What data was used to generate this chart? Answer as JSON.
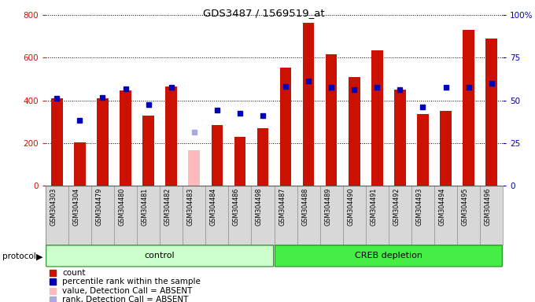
{
  "title": "GDS3487 / 1569519_at",
  "samples": [
    "GSM304303",
    "GSM304304",
    "GSM304479",
    "GSM304480",
    "GSM304481",
    "GSM304482",
    "GSM304483",
    "GSM304484",
    "GSM304486",
    "GSM304498",
    "GSM304487",
    "GSM304488",
    "GSM304489",
    "GSM304490",
    "GSM304491",
    "GSM304492",
    "GSM304493",
    "GSM304494",
    "GSM304495",
    "GSM304496"
  ],
  "count_values": [
    410,
    205,
    410,
    445,
    330,
    465,
    165,
    285,
    230,
    270,
    555,
    765,
    615,
    510,
    635,
    450,
    335,
    350,
    730,
    690
  ],
  "rank_values": [
    410,
    305,
    415,
    455,
    380,
    460,
    250,
    355,
    340,
    330,
    465,
    490,
    460,
    450,
    460,
    450,
    370,
    460,
    460,
    480
  ],
  "absent_flags": [
    false,
    false,
    false,
    false,
    false,
    false,
    true,
    false,
    false,
    false,
    false,
    false,
    false,
    false,
    false,
    false,
    false,
    false,
    false,
    false
  ],
  "control_count": 10,
  "creb_count": 10,
  "bar_color_normal": "#cc1100",
  "bar_color_absent": "#ffbbbb",
  "rank_color_normal": "#0000bb",
  "rank_color_absent": "#aaaadd",
  "control_fill": "#ccffcc",
  "creb_fill": "#44ee44",
  "group_edge": "#228822",
  "left_tick_color": "#cc1100",
  "right_tick_color": "#0000bb",
  "grid_color": "black",
  "bg_color": "#ffffff",
  "label_area_bg": "#d0d0d0",
  "ylim_left": [
    0,
    800
  ],
  "ylim_right": [
    0,
    100
  ],
  "yticks_left": [
    0,
    200,
    400,
    600,
    800
  ],
  "ytick_labels_left": [
    "0",
    "200",
    "400",
    "600",
    "800"
  ],
  "ytick_right_vals": [
    0,
    25,
    50,
    75,
    100
  ],
  "ytick_labels_right": [
    "0",
    "25",
    "50",
    "75",
    "100%"
  ],
  "bar_width": 0.5,
  "legend_colors": [
    "#cc1100",
    "#0000bb",
    "#ffbbbb",
    "#aaaadd"
  ],
  "legend_labels": [
    "count",
    "percentile rank within the sample",
    "value, Detection Call = ABSENT",
    "rank, Detection Call = ABSENT"
  ]
}
